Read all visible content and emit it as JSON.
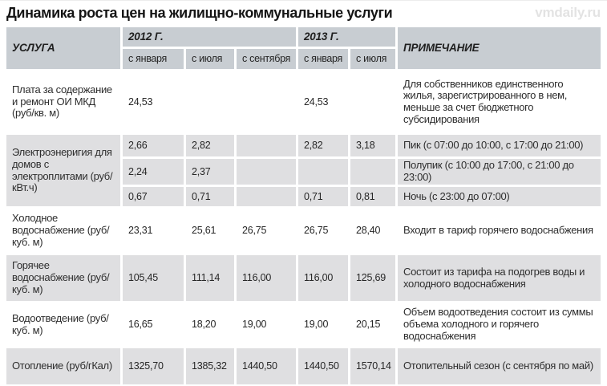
{
  "page": {
    "title": "Динамика роста цен на жилищно-коммунальные услуги",
    "watermark": "vmdaily.ru"
  },
  "colors": {
    "header_cell": "#c8cdd2",
    "gray_row_cell": "#dfdfe1",
    "text": "#2e2e2e",
    "watermark": "#e3e3e3"
  },
  "table": {
    "headers": {
      "service": "УСЛУГА",
      "y2012": "2012 Г.",
      "y2013": "2013 Г.",
      "note": "ПРИМЕЧАНИЕ",
      "sub": [
        "с января",
        "с июля",
        "с сентября",
        "с января",
        "с июля"
      ]
    },
    "rows": [
      {
        "service": "Плата за содержание и ремонт ОИ МКД (руб/кв. м)",
        "values": [
          "24,53",
          "",
          "",
          "24,53",
          ""
        ],
        "note": "Для собственников единственного жилья, зарегистрированного в нем, меньше за счет бюджетного субсидирования"
      },
      {
        "service": "Электроэнеригия для домов с электроплитами (руб/кВт.ч)",
        "subrows": [
          {
            "values": [
              "2,66",
              "2,82",
              "",
              "2,82",
              "3,18"
            ],
            "note": "Пик (с 07:00 до 10:00, с 17:00 до 21:00)"
          },
          {
            "values": [
              "2,24",
              "2,37",
              "",
              "",
              ""
            ],
            "note": "Полупик (с 10:00 до 17:00, с 21:00 до 23:00)"
          },
          {
            "values": [
              "0,67",
              "0,71",
              "",
              "0,71",
              "0,81"
            ],
            "note": "Ночь (с 23:00 до 07:00)"
          }
        ]
      },
      {
        "service": "Холодное водоснабжение (руб/куб. м)",
        "values": [
          "23,31",
          "25,61",
          "26,75",
          "26,75",
          "28,40"
        ],
        "note": "Входит в тариф горячего водоснабжения"
      },
      {
        "service": "Горячее водоснабжение (руб/куб. м)",
        "values": [
          "105,45",
          "111,14",
          "116,00",
          "116,00",
          "125,69"
        ],
        "note": "Состоит из тарифа на подогрев воды и холодного водоснабжения"
      },
      {
        "service": "Водоотведение (руб/куб. м)",
        "values": [
          "16,65",
          "18,20",
          "19,00",
          "19,00",
          "20,15"
        ],
        "note": "Объем водоотведения состоит из суммы объема холодного и горячего водоснабжения"
      },
      {
        "service": "Отопление (руб/гКал)",
        "values": [
          "1325,70",
          "1385,32",
          "1440,50",
          "1440,50",
          "1570,14"
        ],
        "note": "Отопительный сезон (с сентября по май)"
      }
    ]
  },
  "chart_data": {
    "type": "table",
    "title": "Динамика роста цен на жилищно-коммунальные услуги",
    "columns": [
      "Услуга",
      "2012 с января",
      "2012 с июля",
      "2012 с сентября",
      "2013 с января",
      "2013 с июля",
      "Примечание"
    ],
    "rows": [
      [
        "Плата за содержание и ремонт ОИ МКД (руб/кв. м)",
        24.53,
        null,
        null,
        24.53,
        null,
        "Для собственников единственного жилья, зарегистрированного в нем, меньше за счет бюджетного субсидирования"
      ],
      [
        "Электроэнеригия для домов с электроплитами (руб/кВт.ч) — Пик",
        2.66,
        2.82,
        null,
        2.82,
        3.18,
        "Пик (с 07:00 до 10:00, с 17:00 до 21:00)"
      ],
      [
        "Электроэнеригия для домов с электроплитами (руб/кВт.ч) — Полупик",
        2.24,
        2.37,
        null,
        null,
        null,
        "Полупик (с 10:00 до 17:00, с 21:00 до 23:00)"
      ],
      [
        "Электроэнеригия для домов с электроплитами (руб/кВт.ч) — Ночь",
        0.67,
        0.71,
        null,
        0.71,
        0.81,
        "Ночь (с 23:00 до 07:00)"
      ],
      [
        "Холодное водоснабжение (руб/куб. м)",
        23.31,
        25.61,
        26.75,
        26.75,
        28.4,
        "Входит в тариф горячего водоснабжения"
      ],
      [
        "Горячее водоснабжение (руб/куб. м)",
        105.45,
        111.14,
        116.0,
        116.0,
        125.69,
        "Состоит из тарифа на подогрев воды и холодного водоснабжения"
      ],
      [
        "Водоотведение (руб/куб. м)",
        16.65,
        18.2,
        19.0,
        19.0,
        20.15,
        "Объем водоотведения состоит из суммы объема холодного и горячего водоснабжения"
      ],
      [
        "Отопление (руб/гКал)",
        1325.7,
        1385.32,
        1440.5,
        1440.5,
        1570.14,
        "Отопительный сезон (с сентября по май)"
      ]
    ]
  }
}
